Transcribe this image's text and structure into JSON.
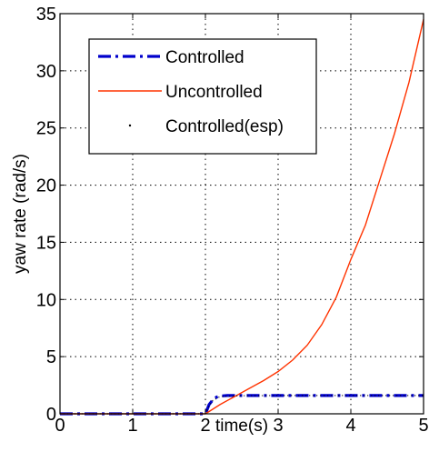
{
  "chart_data": {
    "type": "line",
    "title": "",
    "xlabel": "time(s)",
    "ylabel": "yaw rate (rad/s)",
    "xlim": [
      0,
      5
    ],
    "ylim": [
      0,
      35
    ],
    "xticks": [
      0,
      1,
      2,
      3,
      4,
      5
    ],
    "yticks": [
      0,
      5,
      10,
      15,
      20,
      25,
      30,
      35
    ],
    "grid": true,
    "legend_position": "top-left",
    "series": [
      {
        "name": "Controlled",
        "color": "#0000cc",
        "style": "dash-dot",
        "x": [
          0,
          1,
          2,
          2.02,
          2.05,
          2.1,
          2.15,
          2.2,
          2.3,
          2.5,
          3,
          3.5,
          4,
          4.5,
          5
        ],
        "y": [
          0,
          0,
          0,
          0.3,
          0.8,
          1.2,
          1.45,
          1.55,
          1.6,
          1.6,
          1.6,
          1.6,
          1.6,
          1.6,
          1.6
        ]
      },
      {
        "name": "Uncontrolled",
        "color": "#ff3300",
        "style": "solid",
        "x": [
          0,
          1,
          2,
          2.1,
          2.2,
          2.4,
          2.6,
          2.8,
          3.0,
          3.2,
          3.4,
          3.6,
          3.8,
          4.0,
          4.2,
          4.4,
          4.6,
          4.8,
          5.0
        ],
        "y": [
          0,
          0,
          0,
          0.4,
          0.8,
          1.5,
          2.2,
          2.9,
          3.7,
          4.7,
          6.0,
          7.8,
          10.2,
          13.5,
          16.5,
          20.5,
          24.5,
          29.0,
          34.5
        ]
      },
      {
        "name": "Controlled(esp)",
        "color": "#000000",
        "style": "dotted",
        "x": [
          0,
          1,
          2,
          2.05,
          2.1,
          2.2,
          2.3,
          2.5,
          3,
          3.5,
          4,
          4.5,
          5
        ],
        "y": [
          0,
          0,
          0,
          0.7,
          1.15,
          1.5,
          1.55,
          1.58,
          1.6,
          1.6,
          1.6,
          1.6,
          1.6
        ]
      }
    ]
  }
}
